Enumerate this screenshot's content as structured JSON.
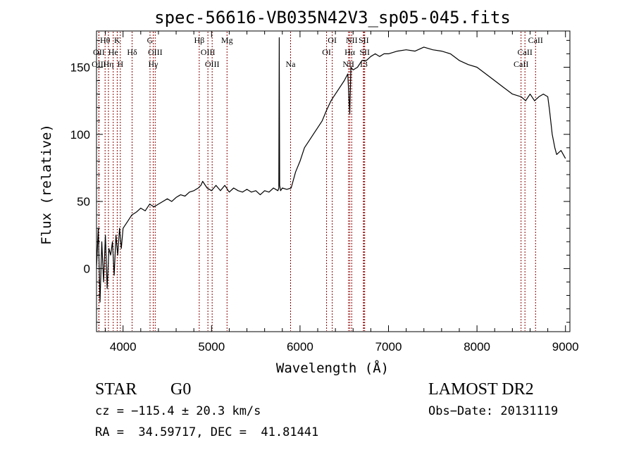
{
  "chart_data": {
    "type": "line",
    "title": "spec-56616-VB035N42V3_sp05-045.fits",
    "xlabel": "Wavelength (Å)",
    "ylabel": "Flux (relative)",
    "xlim": [
      3700,
      9050
    ],
    "ylim": [
      -47,
      177
    ],
    "x_ticks": [
      4000,
      5000,
      6000,
      7000,
      8000,
      9000
    ],
    "y_ticks": [
      0,
      50,
      100,
      150
    ],
    "x_tick_labels": [
      "4000",
      "5000",
      "6000",
      "7000",
      "8000",
      "9000"
    ],
    "y_tick_labels": [
      "0",
      "50",
      "100",
      "150"
    ],
    "grid": false,
    "legend": "none",
    "line_color": "#000000",
    "marker_color": "#8b0000",
    "series": [
      {
        "x": [
          3700,
          3720,
          3740,
          3760,
          3780,
          3800,
          3820,
          3840,
          3860,
          3880,
          3900,
          3920,
          3940,
          3960,
          3980,
          4000,
          4050,
          4100,
          4150,
          4200,
          4250,
          4300,
          4350,
          4400,
          4450,
          4500,
          4550,
          4600,
          4650,
          4700,
          4750,
          4800,
          4850,
          4880,
          4900,
          4950,
          5000,
          5050,
          5100,
          5150,
          5200,
          5250,
          5300,
          5350,
          5400,
          5450,
          5500,
          5550,
          5600,
          5650,
          5700,
          5750,
          5760,
          5765,
          5770,
          5780,
          5800,
          5850,
          5900,
          5950,
          6000,
          6050,
          6100,
          6150,
          6200,
          6250,
          6300,
          6350,
          6400,
          6450,
          6500,
          6540,
          6562,
          6575,
          6600,
          6650,
          6700,
          6750,
          6800,
          6850,
          6900,
          6950,
          7000,
          7100,
          7200,
          7300,
          7400,
          7500,
          7600,
          7700,
          7800,
          7900,
          8000,
          8100,
          8200,
          8300,
          8400,
          8500,
          8550,
          8600,
          8650,
          8700,
          8750,
          8800,
          8820,
          8850,
          8880,
          8900,
          8950,
          9000
        ],
        "y": [
          0,
          30,
          -25,
          20,
          -10,
          25,
          -15,
          15,
          10,
          20,
          -5,
          25,
          10,
          30,
          15,
          30,
          35,
          40,
          42,
          45,
          43,
          48,
          46,
          48,
          50,
          52,
          50,
          53,
          55,
          54,
          57,
          58,
          60,
          62,
          65,
          60,
          58,
          62,
          58,
          62,
          57,
          60,
          58,
          57,
          59,
          57,
          58,
          55,
          58,
          57,
          60,
          58,
          60,
          172,
          62,
          58,
          60,
          59,
          60,
          72,
          80,
          90,
          95,
          100,
          105,
          110,
          118,
          125,
          130,
          135,
          140,
          145,
          115,
          150,
          148,
          150,
          155,
          155,
          158,
          160,
          158,
          160,
          160,
          162,
          163,
          162,
          165,
          163,
          162,
          160,
          155,
          152,
          150,
          145,
          140,
          135,
          130,
          128,
          125,
          130,
          125,
          128,
          130,
          128,
          118,
          100,
          90,
          85,
          88,
          82
        ]
      }
    ],
    "line_markers": [
      {
        "label": "Hθ",
        "x": 3797,
        "row": 0
      },
      {
        "label": "K",
        "x": 3934,
        "row": 0
      },
      {
        "label": "G",
        "x": 4305,
        "row": 0
      },
      {
        "label": "Hβ",
        "x": 4861,
        "row": 0
      },
      {
        "label": "Mg",
        "x": 5175,
        "row": 0
      },
      {
        "label": "OI",
        "x": 6364,
        "row": 0
      },
      {
        "label": "NII",
        "x": 6584,
        "row": 0
      },
      {
        "label": "SII",
        "x": 6720,
        "row": 0
      },
      {
        "label": "CaII",
        "x": 8662,
        "row": 0
      },
      {
        "label": "OII",
        "x": 3727,
        "row": 1
      },
      {
        "label": "He",
        "x": 3889,
        "row": 1
      },
      {
        "label": "Hδ",
        "x": 4102,
        "row": 1
      },
      {
        "label": "OIII",
        "x": 4363,
        "row": 1
      },
      {
        "label": "OIII",
        "x": 4959,
        "row": 1
      },
      {
        "label": "OI",
        "x": 6300,
        "row": 1
      },
      {
        "label": "Hα",
        "x": 6563,
        "row": 1
      },
      {
        "label": "SII",
        "x": 6731,
        "row": 1
      },
      {
        "label": "CaII",
        "x": 8542,
        "row": 1
      },
      {
        "label": "OIII",
        "x": 3727,
        "row": 2
      },
      {
        "label": "Hη",
        "x": 3835,
        "row": 2
      },
      {
        "label": "H",
        "x": 3969,
        "row": 2
      },
      {
        "label": "Hγ",
        "x": 4341,
        "row": 2
      },
      {
        "label": "OIII",
        "x": 5007,
        "row": 2
      },
      {
        "label": "Na",
        "x": 5893,
        "row": 2
      },
      {
        "label": "NII",
        "x": 6548,
        "row": 2
      },
      {
        "label": "13",
        "x": 6716,
        "row": 2
      },
      {
        "label": "CaII",
        "x": 8498,
        "row": 2
      }
    ]
  },
  "info": {
    "class_label": "STAR",
    "subclass": "G0",
    "survey": "LAMOST DR2",
    "cz": "cz = −115.4 ± 20.3 km/s",
    "obs_date": "Obs−Date: 20131119",
    "coords": "RA =  34.59717, DEC =  41.81441"
  }
}
